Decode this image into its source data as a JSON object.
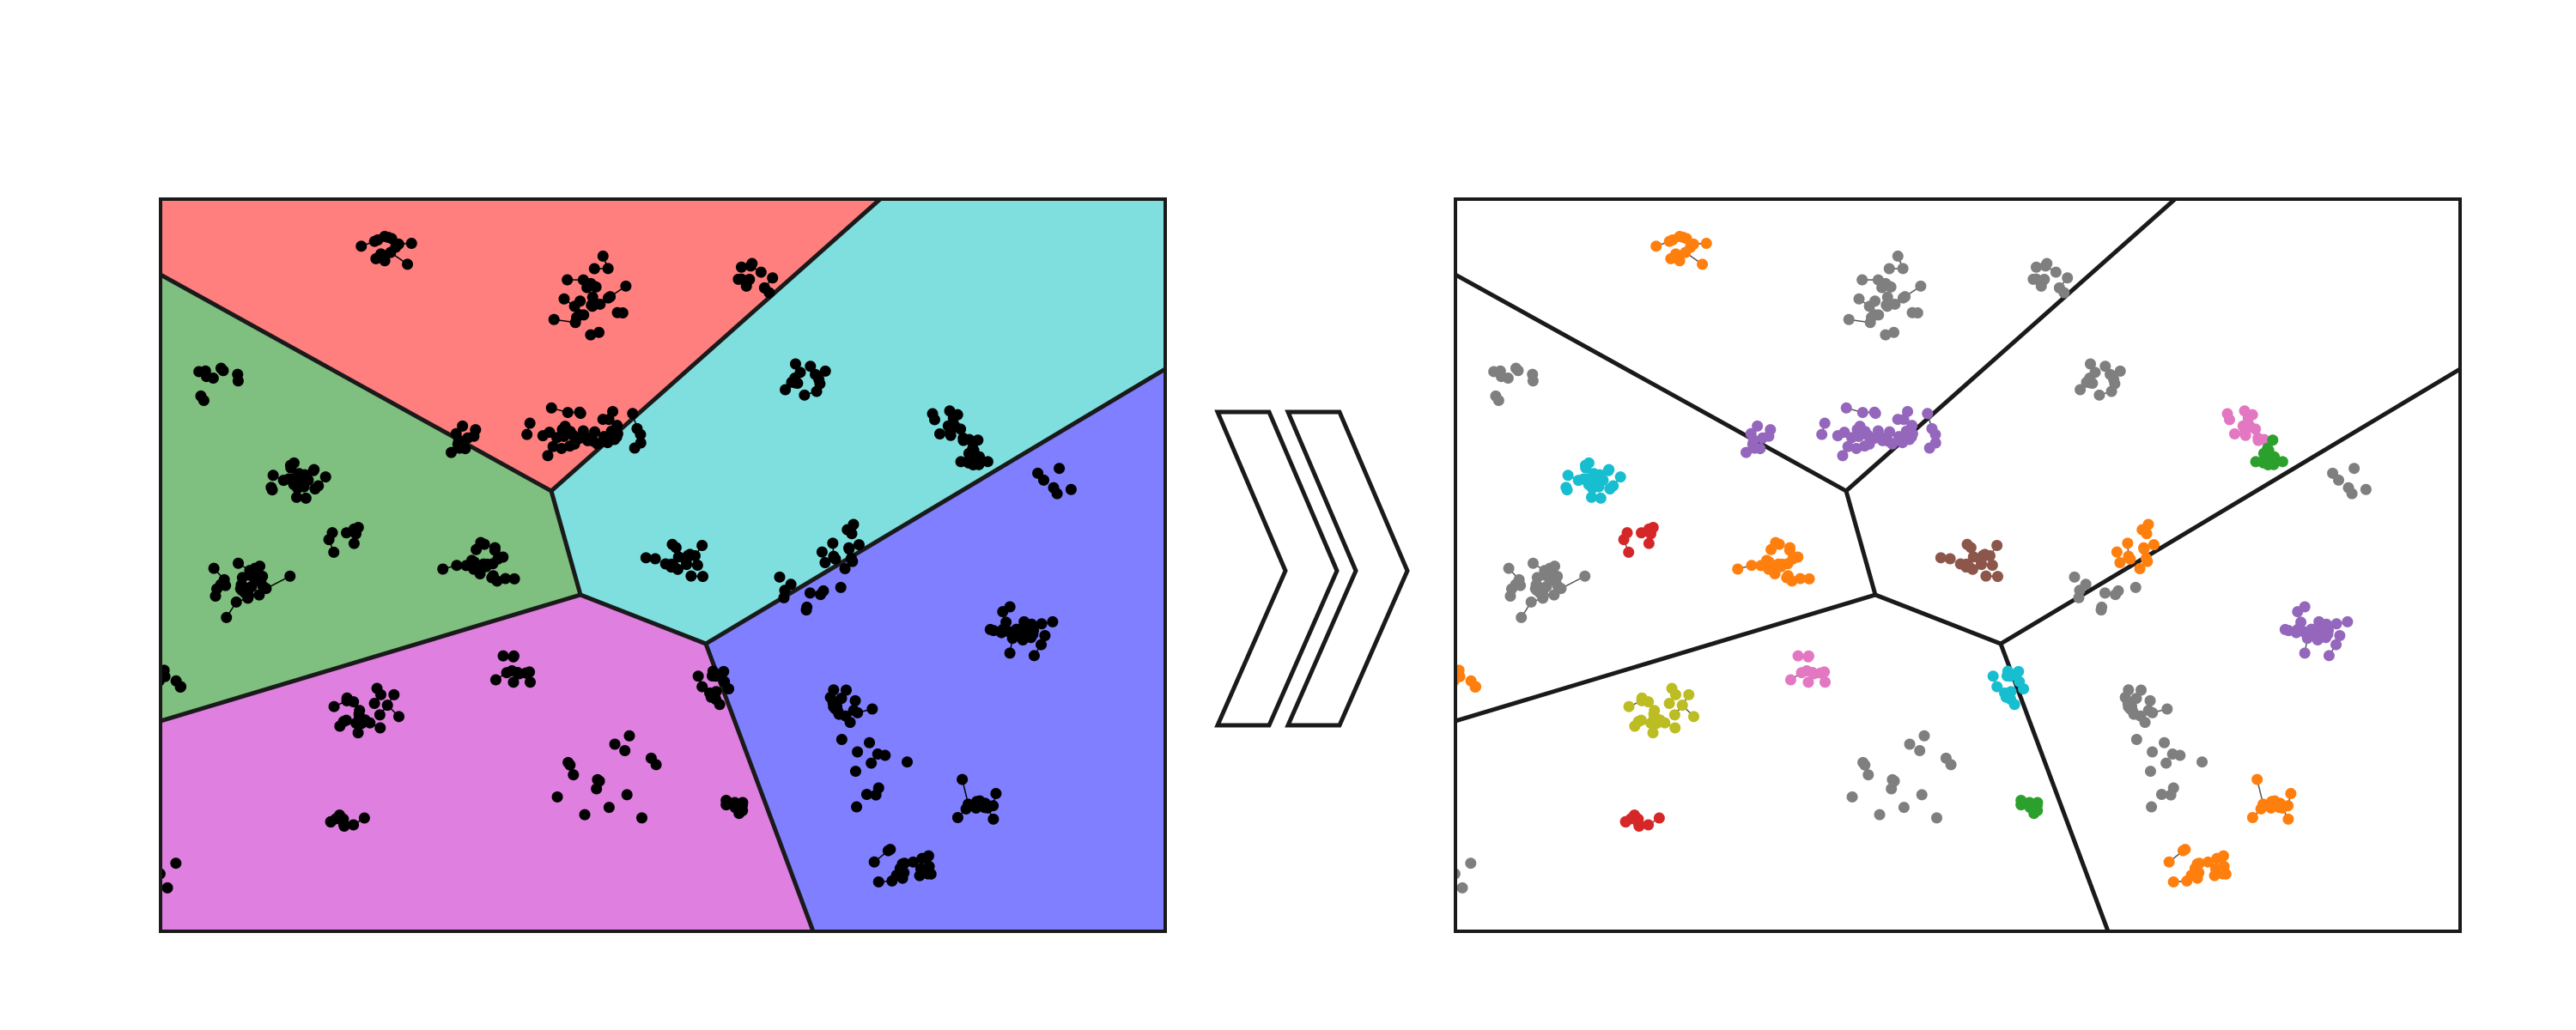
{
  "figure": {
    "left_panel": {
      "region_colors": {
        "red": "#ff7f7f",
        "cyan": "#7fdfdf",
        "green": "#7fbf7f",
        "blue": "#7f7fff",
        "magenta": "#df7fdf"
      },
      "point_color": "#000000",
      "edge_color": "#000000"
    },
    "arrow": {
      "icon": "double-chevron-right-icon",
      "fill": "#ffffff",
      "stroke": "#1a1a1a"
    },
    "right_panel": {
      "background": "#ffffff",
      "cluster_palette": [
        "#1f77b4",
        "#ff7f0e",
        "#2ca02c",
        "#d62728",
        "#9467bd",
        "#8c564b",
        "#e377c2",
        "#7f7f7f",
        "#bcbd22",
        "#17becf"
      ],
      "noise_color": "#7f7f7f"
    },
    "border_color": "#1a1a1a"
  }
}
